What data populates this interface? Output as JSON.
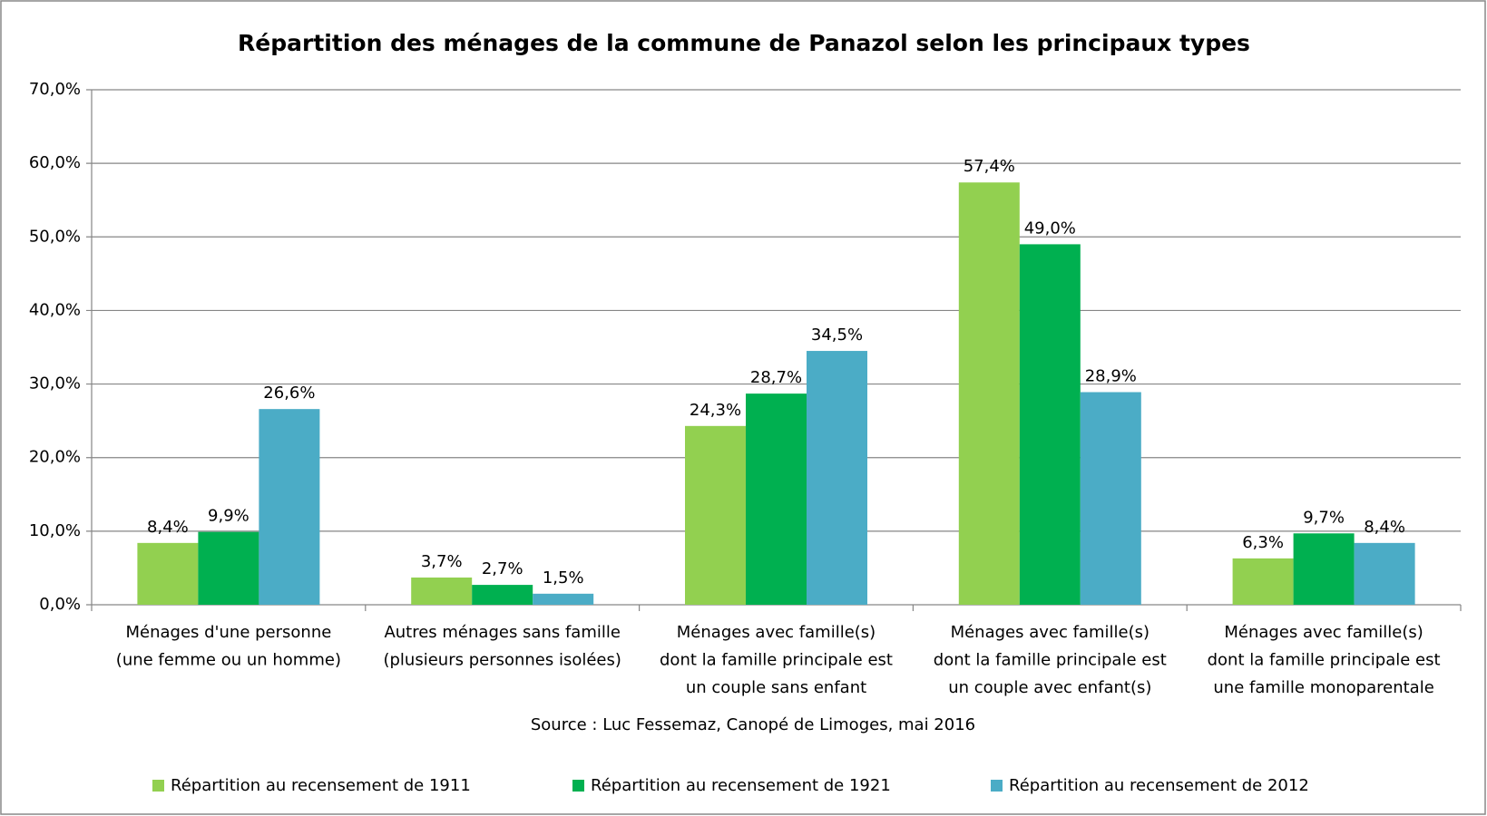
{
  "chart_data": {
    "type": "bar",
    "title": "Répartition des ménages de la commune de Panazol selon les principaux types",
    "categories": [
      [
        "Ménages d'une personne",
        "(une femme ou un homme)"
      ],
      [
        "Autres ménages sans famille",
        "(plusieurs personnes isolées)"
      ],
      [
        "Ménages avec famille(s)",
        "dont la famille  principale est",
        "un couple sans enfant"
      ],
      [
        "Ménages avec famille(s)",
        "dont la famille  principale est",
        "un couple avec enfant(s)"
      ],
      [
        "Ménages avec famille(s)",
        "dont la famille  principale est",
        "une famille  monoparentale"
      ]
    ],
    "series": [
      {
        "name": "Répartition au recensement de 1911",
        "color": "#92d050",
        "values": [
          8.4,
          3.7,
          24.3,
          57.4,
          6.3
        ],
        "value_labels": [
          "8,4%",
          "3,7%",
          "24,3%",
          "57,4%",
          "6,3%"
        ]
      },
      {
        "name": "Répartition au recensement de 1921",
        "color": "#00b050",
        "values": [
          9.9,
          2.7,
          28.7,
          49.0,
          9.7
        ],
        "value_labels": [
          "9,9%",
          "2,7%",
          "28,7%",
          "49,0%",
          "9,7%"
        ]
      },
      {
        "name": "Répartition au recensement de 2012",
        "color": "#4bacc6",
        "values": [
          26.6,
          1.5,
          34.5,
          28.9,
          8.4
        ],
        "value_labels": [
          "26,6%",
          "1,5%",
          "34,5%",
          "28,9%",
          "8,4%"
        ]
      }
    ],
    "ylim": [
      0,
      70
    ],
    "yticks": [
      {
        "value": 0,
        "label": "0,0%"
      },
      {
        "value": 10,
        "label": "10,0%"
      },
      {
        "value": 20,
        "label": "20,0%"
      },
      {
        "value": 30,
        "label": "30,0%"
      },
      {
        "value": 40,
        "label": "40,0%"
      },
      {
        "value": 50,
        "label": "50,0%"
      },
      {
        "value": 60,
        "label": "60,0%"
      },
      {
        "value": 70,
        "label": "70,0%"
      }
    ],
    "grid": true,
    "source": "Source : Luc Fessemaz, Canopé de Limoges, mai 2016",
    "legend": "bottom"
  }
}
